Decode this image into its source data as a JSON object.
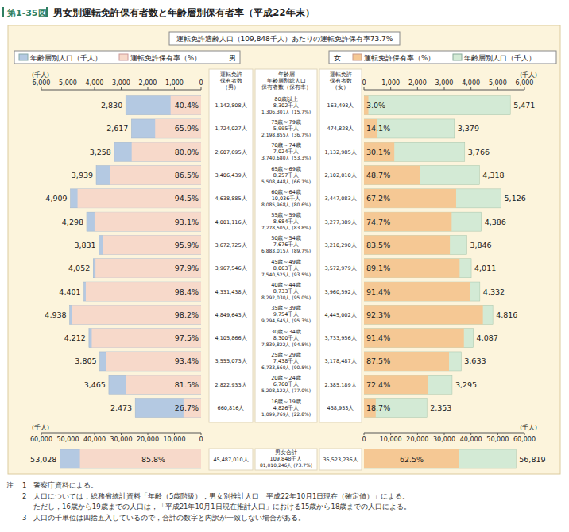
{
  "chart_data": {
    "type": "bar",
    "orientation": "horizontal",
    "data_labels": true,
    "grid": false,
    "figure_label": "第1-35図",
    "title": "男女別運転免許保有者数と年齢層別保有者率（平成22年末）",
    "subtitle": "運転免許適齢人口（109,848千人）あたりの運転免許保有率73.7%",
    "x_unit": "(千人)",
    "xlim": [
      0,
      6000
    ],
    "xticks": [
      0,
      {
        "value": 1000,
        "label": "1,000"
      },
      {
        "value": 2000,
        "label": "2,000"
      },
      {
        "value": 3000,
        "label": "3,000"
      },
      {
        "value": 4000,
        "label": "4,000"
      },
      {
        "value": 5000,
        "label": "5,000"
      },
      {
        "value": 6000,
        "label": "6,000"
      }
    ],
    "categories": [
      "80歳以上",
      "75歳～79歳",
      "70歳～74歳",
      "65歳～69歳",
      "60歳～64歳",
      "55歳～59歳",
      "50歳～54歳",
      "45歳～49歳",
      "40歳～44歳",
      "35歳～39歳",
      "30歳～34歳",
      "25歳～29歳",
      "20歳～24歳",
      "16歳～19歳"
    ],
    "headers": {
      "male": [
        "運転免許",
        "保有者数",
        "（男）"
      ],
      "center": [
        "年齢層",
        "年齢層別総人口",
        "保有者数（保有率）"
      ],
      "female": [
        "運転免許",
        "保有者数",
        "（女）"
      ]
    },
    "male": {
      "label": "男",
      "population": {
        "name": "年齢層別人口（千人）",
        "color": "#b4c9e2",
        "values": [
          2830,
          2617,
          3258,
          3939,
          4909,
          4298,
          3831,
          4052,
          4401,
          4938,
          4212,
          3805,
          3465,
          2473
        ],
        "value_labels": [
          "2,830",
          "2,617",
          "3,258",
          "3,939",
          "4,909",
          "4,298",
          "3,831",
          "4,052",
          "4,401",
          "4,938",
          "4,212",
          "3,805",
          "3,465",
          "2,473"
        ]
      },
      "rate": {
        "name": "運転免許保有率（%）",
        "color": "#f7d9ca",
        "values": [
          40.4,
          65.9,
          80.0,
          86.5,
          94.5,
          93.1,
          95.9,
          97.9,
          98.4,
          98.2,
          97.5,
          93.4,
          81.5,
          26.7
        ],
        "value_labels": [
          "40.4%",
          "65.9%",
          "80.0%",
          "86.5%",
          "94.5%",
          "93.1%",
          "95.9%",
          "97.9%",
          "98.4%",
          "98.2%",
          "97.5%",
          "93.4%",
          "81.5%",
          "26.7%"
        ]
      },
      "holders": [
        "1,142,808人",
        "1,724,027人",
        "2,607,695人",
        "3,406,439人",
        "4,638,885人",
        "4,001,116人",
        "3,672,725人",
        "3,967,546人",
        "4,331,438人",
        "4,849,643人",
        "4,105,866人",
        "3,555,073人",
        "2,822,933人",
        "660,816人"
      ]
    },
    "female": {
      "label": "女",
      "population": {
        "name": "年齢層別人口（千人）",
        "color": "#d3ead5",
        "values": [
          5471,
          3379,
          3766,
          4318,
          5126,
          4386,
          3846,
          4011,
          4332,
          4816,
          4087,
          3633,
          3295,
          2353
        ],
        "value_labels": [
          "5,471",
          "3,379",
          "3,766",
          "4,318",
          "5,126",
          "4,386",
          "3,846",
          "4,011",
          "4,332",
          "4,816",
          "4,087",
          "3,633",
          "3,295",
          "2,353"
        ]
      },
      "rate": {
        "name": "運転免許保有率（%）",
        "color": "#f5c894",
        "values": [
          3.0,
          14.1,
          30.1,
          48.7,
          67.2,
          74.7,
          83.5,
          89.1,
          91.4,
          92.3,
          91.4,
          87.5,
          72.4,
          18.7
        ],
        "value_labels": [
          "3.0%",
          "14.1%",
          "30.1%",
          "48.7%",
          "67.2%",
          "74.7%",
          "83.5%",
          "89.1%",
          "91.4%",
          "92.3%",
          "91.4%",
          "87.5%",
          "72.4%",
          "18.7%"
        ]
      },
      "holders": [
        "163,493人",
        "474,828人",
        "1,132,985人",
        "2,102,010人",
        "3,447,083人",
        "3,277,389人",
        "3,210,290人",
        "3,572,979人",
        "3,960,592人",
        "4,445,002人",
        "3,733,956人",
        "3,178,487人",
        "2,385,189人",
        "438,953人"
      ]
    },
    "center": {
      "populations": [
        "8,302千人",
        "5,995千人",
        "7,024千人",
        "8,257千人",
        "10,036千人",
        "8,684千人",
        "7,676千人",
        "8,063千人",
        "8,733千人",
        "9,754千人",
        "8,300千人",
        "7,438千人",
        "6,760千人",
        "4,826千人"
      ],
      "holders": [
        "1,306,301人 (15.7%)",
        "2,198,855人 (36.7%)",
        "3,740,680人 (53.3%)",
        "5,508,448人 (66.7%)",
        "8,085,968人 (80.6%)",
        "7,278,505人 (83.8%)",
        "6,883,015人 (89.7%)",
        "7,540,525人 (93.5%)",
        "8,292,030人 (95.0%)",
        "9,294,645人 (95.3%)",
        "7,839,822人 (94.5%)",
        "6,733,560人 (90.5%)",
        "5,208,122人 (77.0%)",
        "1,099,769人 (22.8%)"
      ]
    },
    "totals": {
      "xlim": [
        0,
        60000
      ],
      "xticks": [
        0,
        {
          "value": 10000,
          "label": "10,000"
        },
        {
          "value": 20000,
          "label": "20,000"
        },
        {
          "value": 30000,
          "label": "30,000"
        },
        {
          "value": 40000,
          "label": "40,000"
        },
        {
          "value": 50000,
          "label": "50,000"
        },
        {
          "value": 60000,
          "label": "60,000"
        }
      ],
      "category": "男女合計",
      "population": "109,848千人",
      "holders": "81,010,246人 (73.7%)",
      "male": {
        "population": 53028,
        "population_label": "53,028",
        "rate": 85.8,
        "rate_label": "85.8%",
        "holders": "45,487,010人"
      },
      "female": {
        "population": 56819,
        "population_label": "56,819",
        "rate": 62.5,
        "rate_label": "62.5%",
        "holders": "35,523,236人"
      }
    },
    "notes_label": "注",
    "notes": [
      {
        "number": "1",
        "lines": [
          "警察庁資料による。"
        ]
      },
      {
        "number": "2",
        "lines": [
          "人口については，総務省統計資料「年齢（5歳階級），男女別推計人口　平成22年10月1日現在（確定値）」による。",
          "ただし，16歳から19歳までの人口は，「平成21年10月1日現在推計人口」における15歳から18歳までの人口による。"
        ]
      },
      {
        "number": "3",
        "lines": [
          "人口の千単位は四捨五入しているので，合計の数字と内訳が一致しない場合がある。"
        ]
      }
    ]
  }
}
